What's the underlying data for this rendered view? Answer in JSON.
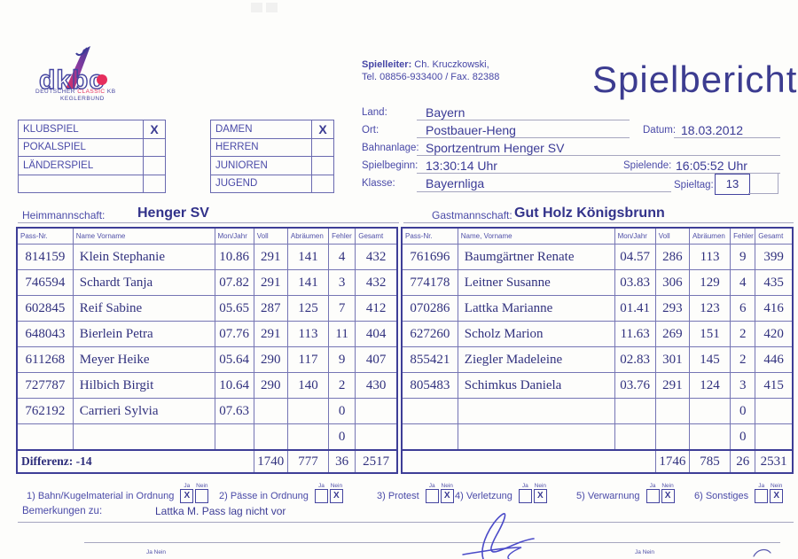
{
  "logo": {
    "acronym": "dkbc",
    "sub_line1_a": "DEUTSCHER ",
    "sub_line1_b": "CLASSIC",
    "sub_line1_c": " KB",
    "sub_line2": "KEGLERBUND"
  },
  "header": {
    "spielleiter_label": "Spielleiter:",
    "spielleiter_value": " Ch. Kruczkowski,",
    "tel_line": "Tel. 08856-933400 / Fax. 82388",
    "title": "Spielbericht"
  },
  "info": {
    "land_label": "Land:",
    "land": "Bayern",
    "ort_label": "Ort:",
    "ort": "Postbauer-Heng",
    "datum_label": "Datum:",
    "datum": "18.03.2012",
    "bahnanlage_label": "Bahnanlage:",
    "bahnanlage": "Sportzentrum Henger SV",
    "spielbeginn_label": "Spielbeginn:",
    "spielbeginn": "13:30:14 Uhr",
    "spielende_label": "Spielende:",
    "spielende": "16:05:52 Uhr",
    "klasse_label": "Klasse:",
    "klasse": "Bayernliga",
    "spieltag_label": "Spieltag:",
    "spieltag": "13"
  },
  "match_type": {
    "rows": [
      [
        "KLUBSPIEL",
        "X"
      ],
      [
        "POKALSPIEL",
        ""
      ],
      [
        "LÄNDERSPIEL",
        ""
      ],
      [
        "",
        ""
      ]
    ]
  },
  "category": {
    "rows": [
      [
        "DAMEN",
        "X"
      ],
      [
        "HERREN",
        ""
      ],
      [
        "JUNIOREN",
        ""
      ],
      [
        "JUGEND",
        ""
      ]
    ]
  },
  "teams": {
    "home_label": "Heimmannschaft:",
    "home": "Henger SV",
    "guest_label": "Gastmannschaft:",
    "guest": "Gut Holz Königsbrunn"
  },
  "home_table": {
    "headers": [
      "Pass-Nr.",
      "Name Vorname",
      "Mon/Jahr",
      "Voll",
      "Abräumen",
      "Fehler",
      "Gesamt"
    ],
    "rows": [
      [
        "814159",
        "Klein Stephanie",
        "10.86",
        "291",
        "141",
        "4",
        "432"
      ],
      [
        "746594",
        "Schardt Tanja",
        "07.82",
        "291",
        "141",
        "3",
        "432"
      ],
      [
        "602845",
        "Reif Sabine",
        "05.65",
        "287",
        "125",
        "7",
        "412"
      ],
      [
        "648043",
        "Bierlein Petra",
        "07.76",
        "291",
        "113",
        "11",
        "404"
      ],
      [
        "611268",
        "Meyer Heike",
        "05.64",
        "290",
        "117",
        "9",
        "407"
      ],
      [
        "727787",
        "Hilbich Birgit",
        "10.64",
        "290",
        "140",
        "2",
        "430"
      ],
      [
        "762192",
        "Carrieri Sylvia",
        "07.63",
        "",
        "",
        "0",
        ""
      ],
      [
        "",
        "",
        "",
        "",
        "",
        "0",
        ""
      ]
    ],
    "totals_label": "Differenz: -14",
    "totals": [
      "1740",
      "777",
      "36",
      "2517"
    ]
  },
  "guest_table": {
    "headers": [
      "Pass-Nr.",
      "Name, Vorname",
      "Mon/Jahr",
      "Voll",
      "Abräumen",
      "Fehler",
      "Gesamt"
    ],
    "rows": [
      [
        "761696",
        "Baumgärtner Renate",
        "04.57",
        "286",
        "113",
        "9",
        "399"
      ],
      [
        "774178",
        "Leitner Susanne",
        "03.83",
        "306",
        "129",
        "4",
        "435"
      ],
      [
        "070286",
        "Lattka Marianne",
        "01.41",
        "293",
        "123",
        "6",
        "416"
      ],
      [
        "627260",
        "Scholz Marion",
        "11.63",
        "269",
        "151",
        "2",
        "420"
      ],
      [
        "855421",
        "Ziegler Madeleine",
        "02.83",
        "301",
        "145",
        "2",
        "446"
      ],
      [
        "805483",
        "Schimkus Daniela",
        "03.76",
        "291",
        "124",
        "3",
        "415"
      ],
      [
        "",
        "",
        "",
        "",
        "",
        "0",
        ""
      ],
      [
        "",
        "",
        "",
        "",
        "",
        "0",
        ""
      ]
    ],
    "totals_label": "",
    "totals": [
      "1746",
      "785",
      "26",
      "2531"
    ]
  },
  "checklist": {
    "ja_label": "Ja",
    "nein_label": "Nein",
    "items": [
      {
        "label": "1) Bahn/Kugelmaterial in Ordnung",
        "ja": "X",
        "nein": ""
      },
      {
        "label": "2) Pässe in Ordnung",
        "ja": "",
        "nein": "X"
      },
      {
        "label": "3) Protest",
        "ja": "",
        "nein": "X"
      },
      {
        "label": "4) Verletzung",
        "ja": "",
        "nein": "X"
      },
      {
        "label": "5) Verwarnung",
        "ja": "",
        "nein": "X"
      },
      {
        "label": "6) Sonstiges",
        "ja": "",
        "nein": "X"
      }
    ]
  },
  "remarks": {
    "label": "Bemerkungen zu:",
    "value": "Lattka M. Pass lag nicht vor"
  },
  "footer": {
    "ja_nein_left": "Ja  Nein",
    "ja_nein_right": "Ja  Nein"
  },
  "colors": {
    "ink": "#4040a0",
    "data_text": "#31317e",
    "logo_red": "#e62e5c",
    "title": "#3c3c90"
  }
}
